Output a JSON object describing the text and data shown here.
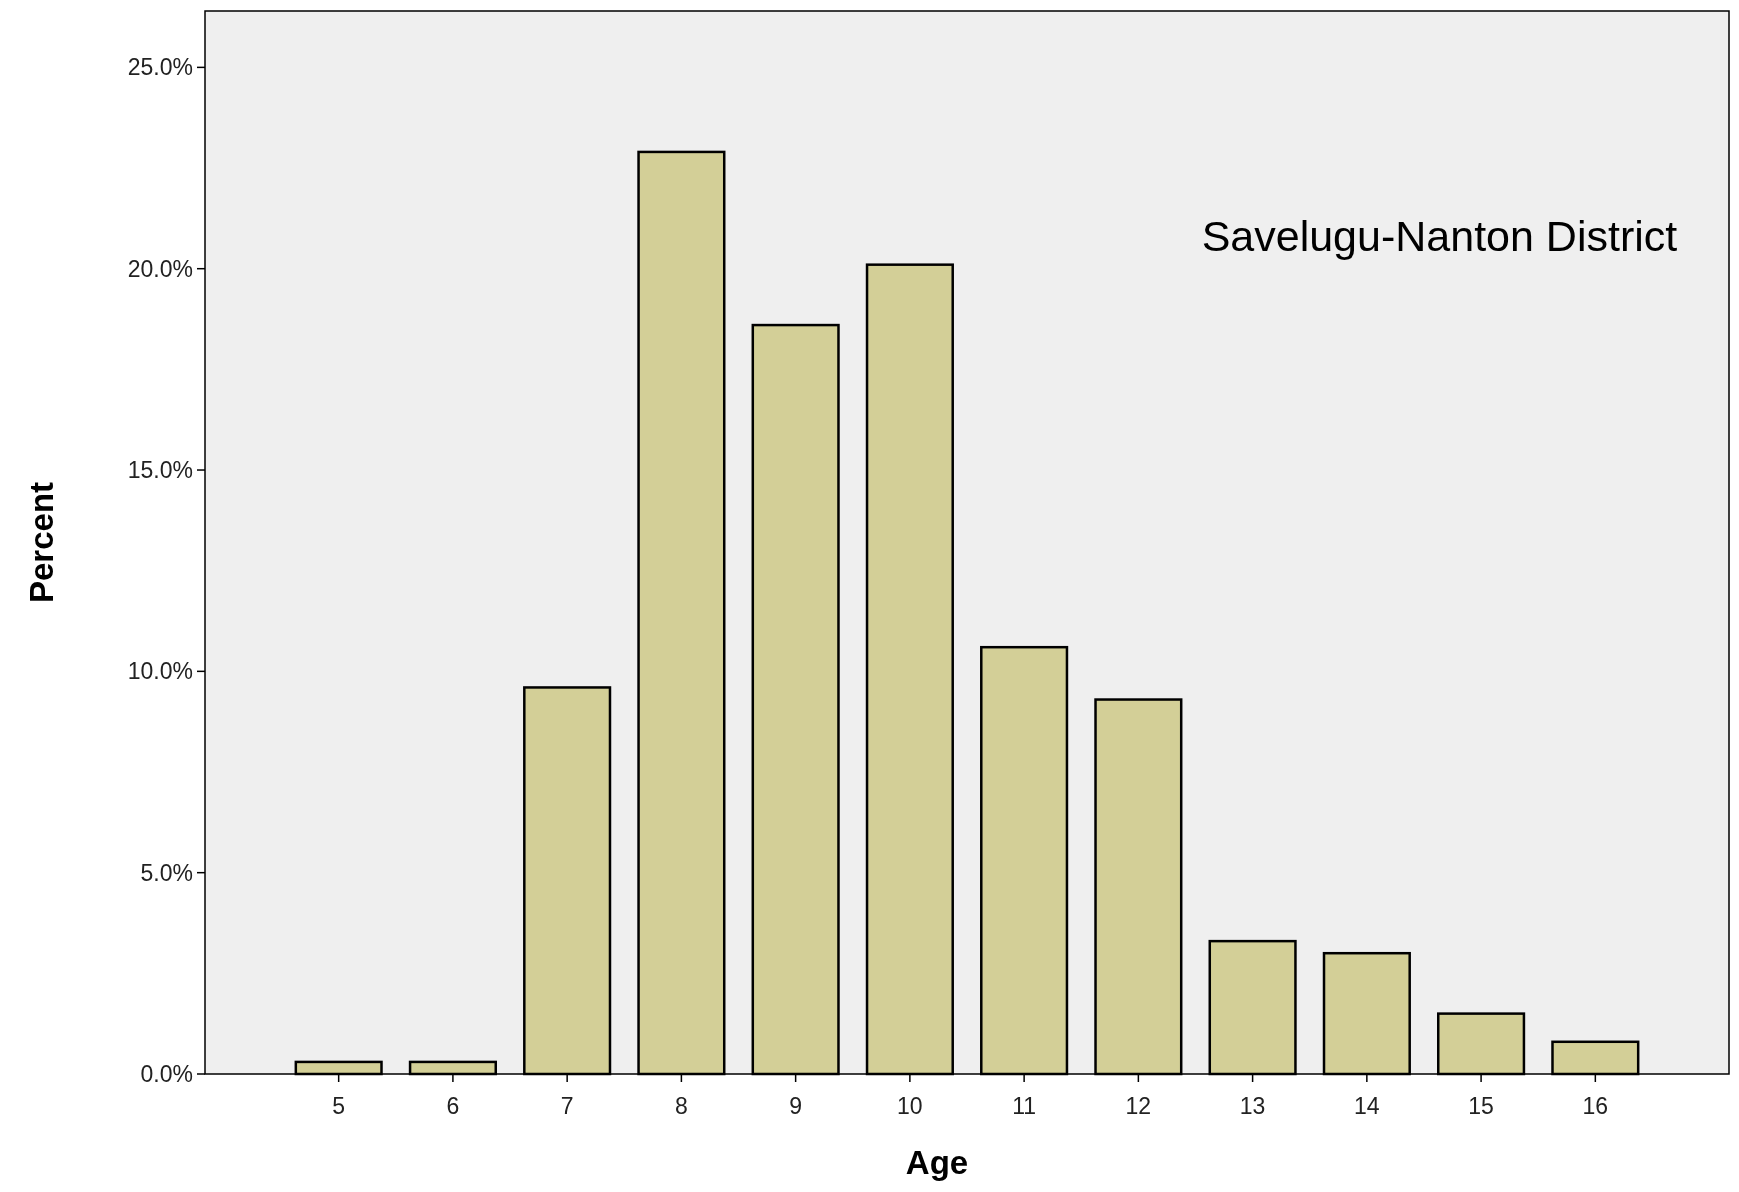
{
  "chart_data": {
    "type": "bar",
    "xlabel": "Age",
    "ylabel": "Percent",
    "categories": [
      "5",
      "6",
      "7",
      "8",
      "9",
      "10",
      "11",
      "12",
      "13",
      "14",
      "15",
      "16"
    ],
    "values": [
      0.3,
      0.3,
      9.6,
      22.9,
      18.6,
      20.1,
      10.6,
      9.3,
      3.3,
      3.0,
      1.5,
      0.8
    ],
    "color": "#d3cf97",
    "ylim": [
      0,
      26.4
    ],
    "yticks": [
      {
        "value": 0,
        "label": "0.0%"
      },
      {
        "value": 5,
        "label": "5.0%"
      },
      {
        "value": 10,
        "label": "10.0%"
      },
      {
        "value": 15,
        "label": "15.0%"
      },
      {
        "value": 20,
        "label": "20.0%"
      },
      {
        "value": 25,
        "label": "25.0%"
      }
    ],
    "annotations": [
      "Savelugu-Nanton District"
    ],
    "grid": false
  }
}
